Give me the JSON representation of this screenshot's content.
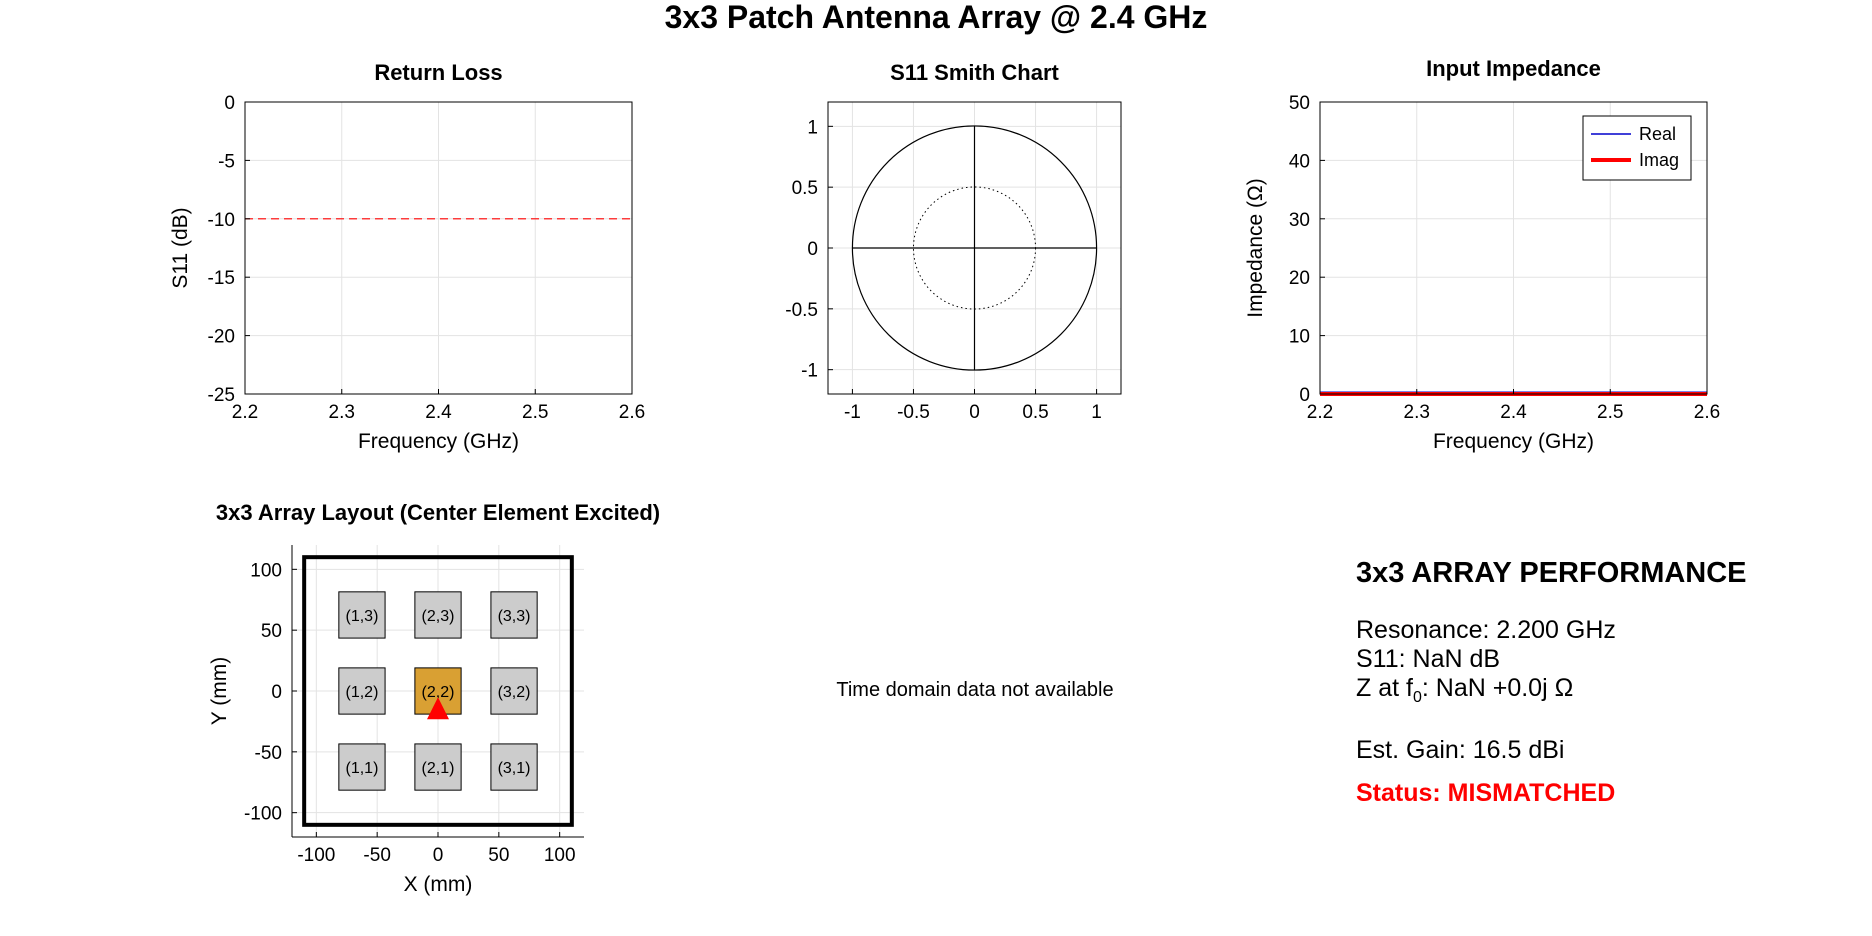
{
  "figure": {
    "title": "3x3 Patch Antenna Array @ 2.4 GHz"
  },
  "chart_data": [
    {
      "id": "return-loss",
      "type": "line",
      "title": "Return Loss",
      "xlabel": "Frequency (GHz)",
      "ylabel": "S11 (dB)",
      "xlim": [
        2.2,
        2.6
      ],
      "ylim": [
        -25,
        0
      ],
      "xticks": [
        2.2,
        2.3,
        2.4,
        2.5,
        2.6
      ],
      "yticks": [
        0,
        -5,
        -10,
        -15,
        -20,
        -25
      ],
      "grid": true,
      "reference_lines": [
        {
          "y": -10,
          "color": "#ff0000",
          "style": "dashed"
        }
      ],
      "series": []
    },
    {
      "id": "smith-chart",
      "type": "line",
      "title": "S11 Smith Chart",
      "xlim": [
        -1.2,
        1.2
      ],
      "ylim": [
        -1.2,
        1.2
      ],
      "xticks": [
        -1,
        -0.5,
        0,
        0.5,
        1
      ],
      "yticks": [
        1,
        0.5,
        0,
        -0.5,
        -1
      ],
      "grid": true,
      "unit_circle_radius": 1,
      "inner_circle_radius": 0.5,
      "series": []
    },
    {
      "id": "input-impedance",
      "type": "line",
      "title": "Input Impedance",
      "xlabel": "Frequency (GHz)",
      "ylabel": "Impedance (Ω)",
      "xlim": [
        2.2,
        2.6
      ],
      "ylim": [
        0,
        50
      ],
      "xticks": [
        2.2,
        2.3,
        2.4,
        2.5,
        2.6
      ],
      "yticks": [
        50,
        40,
        30,
        20,
        10,
        0
      ],
      "grid": true,
      "legend_position": "top-right",
      "series": [
        {
          "name": "Real",
          "color": "#0000cc",
          "x": [
            2.2,
            2.6
          ],
          "y": [
            0.3,
            0.3
          ]
        },
        {
          "name": "Imag",
          "color": "#ff0000",
          "x": [
            2.2,
            2.6
          ],
          "y": [
            0,
            0
          ]
        }
      ]
    },
    {
      "id": "array-layout",
      "type": "scatter",
      "title": "3x3 Array Layout (Center Element Excited)",
      "xlabel": "X (mm)",
      "ylabel": "Y (mm)",
      "xlim": [
        -120,
        120
      ],
      "ylim": [
        -120,
        120
      ],
      "xticks": [
        -100,
        -50,
        0,
        50,
        100
      ],
      "yticks": [
        100,
        50,
        0,
        -50,
        -100
      ],
      "grid": true,
      "substrate": {
        "x": [
          -110,
          110
        ],
        "y": [
          -110,
          110
        ]
      },
      "element_size_mm": 38,
      "elements": [
        {
          "label": "(1,3)",
          "x": -62.5,
          "y": 62.5,
          "excited": false
        },
        {
          "label": "(2,3)",
          "x": 0,
          "y": 62.5,
          "excited": false
        },
        {
          "label": "(3,3)",
          "x": 62.5,
          "y": 62.5,
          "excited": false
        },
        {
          "label": "(1,2)",
          "x": -62.5,
          "y": 0,
          "excited": false
        },
        {
          "label": "(2,2)",
          "x": 0,
          "y": 0,
          "excited": true
        },
        {
          "label": "(3,2)",
          "x": 62.5,
          "y": 0,
          "excited": false
        },
        {
          "label": "(1,1)",
          "x": -62.5,
          "y": -62.5,
          "excited": false
        },
        {
          "label": "(2,1)",
          "x": 0,
          "y": -62.5,
          "excited": false
        },
        {
          "label": "(3,1)",
          "x": 62.5,
          "y": -62.5,
          "excited": false
        }
      ],
      "feed": {
        "x": 0,
        "y": -15,
        "color": "#ff0000"
      },
      "colors": {
        "element": "#cccccc",
        "excited": "#d9a033"
      }
    }
  ],
  "time_domain": {
    "message": "Time domain data not available"
  },
  "performance": {
    "heading": "3x3 ARRAY PERFORMANCE",
    "resonance": "Resonance: 2.200 GHz",
    "s11": "S11: NaN dB",
    "z_prefix": "Z at f",
    "z_sub": "0",
    "z_suffix": ": NaN +0.0j Ω",
    "gain": "Est. Gain: 16.5 dBi",
    "status": "Status: MISMATCHED",
    "status_color": "#ff0000"
  }
}
